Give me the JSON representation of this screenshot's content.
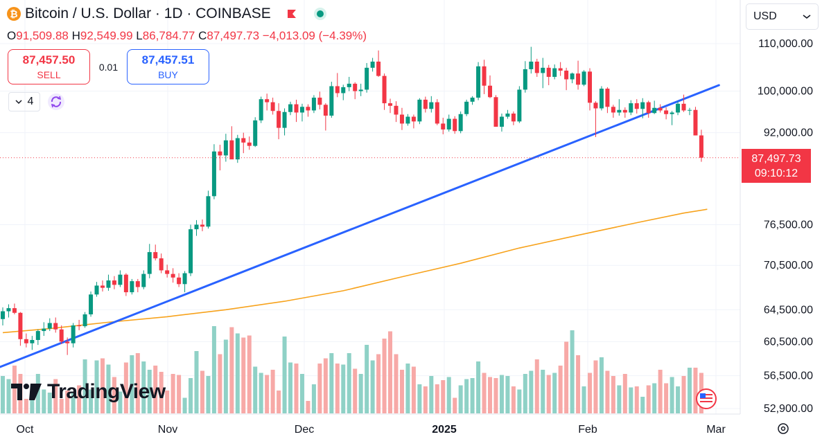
{
  "header": {
    "title": "Bitcoin / U.S. Dollar · 1D · COINBASE",
    "symbol_icon": "₿",
    "ohlc": {
      "o_label": "O",
      "o": "91,509.88",
      "h_label": "H",
      "h": "92,549.99",
      "l_label": "L",
      "l": "86,784.77",
      "c_label": "C",
      "c": "87,497.73",
      "change": "−4,013.09 (−4.39%)"
    }
  },
  "trade": {
    "sell_price": "87,457.50",
    "sell_label": "SELL",
    "spread": "0.01",
    "buy_price": "87,457.51",
    "buy_label": "BUY"
  },
  "indicators": {
    "count": "4"
  },
  "currency": {
    "label": "USD"
  },
  "last_price": {
    "price": "87,497.73",
    "countdown": "09:10:12"
  },
  "logo": {
    "text": "TradingView"
  },
  "colors": {
    "up": "#089981",
    "down": "#f23645",
    "trendline": "#2962ff",
    "ma": "#f7a21b",
    "vol_up": "#8fd1c6",
    "vol_down": "#f7a9a7",
    "grid": "#f0f3fa"
  },
  "chart_data": {
    "type": "candlestick",
    "symbol": "BTC/USD",
    "interval": "1D",
    "exchange": "COINBASE",
    "y_axis_scale": "log",
    "ylim": [
      52000,
      114000
    ],
    "x_ticks": [
      "Oct",
      "Nov",
      "Dec",
      "2025",
      "Feb",
      "Mar"
    ],
    "y_ticks": [
      "110,000.00",
      "100,000.00",
      "92,000.00",
      "76,500.00",
      "70,500.00",
      "64,500.00",
      "60,500.00",
      "56,500.00",
      "52,900.00"
    ],
    "candles_ohlc": [
      [
        63300,
        64800,
        62500,
        64300
      ],
      [
        64300,
        65200,
        63500,
        64700
      ],
      [
        64700,
        65300,
        63900,
        64100
      ],
      [
        64100,
        64200,
        60000,
        60800
      ],
      [
        60800,
        61500,
        59800,
        60300
      ],
      [
        60300,
        61200,
        59500,
        60700
      ],
      [
        60700,
        62000,
        60100,
        61800
      ],
      [
        61800,
        62900,
        61200,
        62100
      ],
      [
        62100,
        63400,
        61800,
        62800
      ],
      [
        62800,
        63500,
        61600,
        62000
      ],
      [
        62000,
        62500,
        60200,
        60500
      ],
      [
        60500,
        61000,
        58900,
        60300
      ],
      [
        60300,
        62800,
        59800,
        62500
      ],
      [
        62500,
        63200,
        61900,
        62400
      ],
      [
        62400,
        64200,
        62200,
        63900
      ],
      [
        63900,
        66900,
        63600,
        66500
      ],
      [
        66500,
        68200,
        66200,
        67700
      ],
      [
        67700,
        68400,
        66900,
        67400
      ],
      [
        67400,
        69200,
        67000,
        68400
      ],
      [
        68400,
        69000,
        67200,
        67800
      ],
      [
        67800,
        69800,
        67500,
        69200
      ],
      [
        69200,
        69400,
        66300,
        66800
      ],
      [
        66800,
        68600,
        66500,
        68300
      ],
      [
        68300,
        68600,
        66800,
        67500
      ],
      [
        67500,
        69800,
        67200,
        69300
      ],
      [
        69300,
        73600,
        68700,
        72400
      ],
      [
        72400,
        73500,
        71200,
        71500
      ],
      [
        71500,
        72200,
        69400,
        69800
      ],
      [
        69800,
        70600,
        68800,
        69300
      ],
      [
        69300,
        70100,
        68100,
        68800
      ],
      [
        68800,
        69400,
        67500,
        67900
      ],
      [
        67900,
        69700,
        66800,
        69400
      ],
      [
        69400,
        76500,
        69000,
        75800
      ],
      [
        75800,
        77200,
        74800,
        76500
      ],
      [
        76500,
        77300,
        75500,
        76200
      ],
      [
        76200,
        81900,
        75900,
        81000
      ],
      [
        81000,
        89900,
        80500,
        88600
      ],
      [
        88600,
        89800,
        85300,
        87900
      ],
      [
        87900,
        91800,
        86800,
        90600
      ],
      [
        90600,
        93200,
        87400,
        87200
      ],
      [
        87200,
        91600,
        86600,
        91000
      ],
      [
        91000,
        92000,
        88300,
        90200
      ],
      [
        90200,
        91300,
        88900,
        89600
      ],
      [
        89600,
        94900,
        89400,
        94300
      ],
      [
        94300,
        98900,
        93800,
        98400
      ],
      [
        98400,
        99500,
        96200,
        97800
      ],
      [
        97800,
        98700,
        95400,
        96100
      ],
      [
        96100,
        97600,
        90800,
        92900
      ],
      [
        92900,
        96600,
        91500,
        95900
      ],
      [
        95900,
        97900,
        95300,
        97400
      ],
      [
        97400,
        98300,
        94000,
        95800
      ],
      [
        95800,
        97500,
        94100,
        96900
      ],
      [
        96900,
        97400,
        95000,
        96200
      ],
      [
        96200,
        99200,
        95700,
        98700
      ],
      [
        98700,
        99900,
        96400,
        97300
      ],
      [
        97300,
        97600,
        92400,
        95200
      ],
      [
        95200,
        101900,
        94800,
        101000
      ],
      [
        101000,
        103700,
        98800,
        99600
      ],
      [
        99600,
        101300,
        98200,
        100800
      ],
      [
        100800,
        102900,
        100000,
        101500
      ],
      [
        101500,
        101800,
        98400,
        100000
      ],
      [
        100000,
        101500,
        99000,
        100300
      ],
      [
        100300,
        105800,
        99700,
        104800
      ],
      [
        104800,
        106900,
        104000,
        106100
      ],
      [
        106100,
        108500,
        102900,
        103100
      ],
      [
        103100,
        103600,
        96300,
        97600
      ],
      [
        97600,
        98500,
        95700,
        97100
      ],
      [
        97100,
        98000,
        94000,
        95400
      ],
      [
        95400,
        96700,
        92500,
        93700
      ],
      [
        93700,
        95500,
        93300,
        95000
      ],
      [
        95000,
        95400,
        92800,
        94100
      ],
      [
        94100,
        98600,
        93600,
        98300
      ],
      [
        98300,
        98900,
        95800,
        96500
      ],
      [
        96500,
        99000,
        95800,
        97800
      ],
      [
        97800,
        98400,
        93400,
        93700
      ],
      [
        93700,
        94800,
        91700,
        92600
      ],
      [
        92600,
        95400,
        92200,
        94600
      ],
      [
        94600,
        95100,
        91800,
        92300
      ],
      [
        92300,
        96000,
        91900,
        95500
      ],
      [
        95500,
        98300,
        95100,
        97900
      ],
      [
        97900,
        99000,
        97300,
        98700
      ],
      [
        98700,
        106000,
        98200,
        105100
      ],
      [
        105100,
        106500,
        99400,
        101100
      ],
      [
        101100,
        103200,
        98600,
        98800
      ],
      [
        98800,
        99200,
        93200,
        93100
      ],
      [
        93100,
        95600,
        92200,
        95000
      ],
      [
        95000,
        96300,
        94600,
        95600
      ],
      [
        95600,
        96000,
        93400,
        94100
      ],
      [
        94100,
        101000,
        93800,
        100300
      ],
      [
        100300,
        106200,
        99700,
        104500
      ],
      [
        104500,
        109300,
        103600,
        106100
      ],
      [
        106100,
        106700,
        102900,
        103700
      ],
      [
        103700,
        106900,
        100600,
        104800
      ],
      [
        104800,
        105400,
        101200,
        102900
      ],
      [
        102900,
        105500,
        102400,
        104700
      ],
      [
        104700,
        106000,
        103100,
        104200
      ],
      [
        104200,
        104800,
        100200,
        102400
      ],
      [
        102400,
        103800,
        101600,
        103600
      ],
      [
        103600,
        106300,
        100300,
        101300
      ],
      [
        101300,
        104300,
        101000,
        104000
      ],
      [
        104000,
        104700,
        96200,
        97700
      ],
      [
        97700,
        98000,
        91200,
        96600
      ],
      [
        96600,
        101000,
        96200,
        100500
      ],
      [
        100500,
        100800,
        95700,
        96900
      ],
      [
        96900,
        97300,
        94800,
        95800
      ],
      [
        95800,
        98400,
        95200,
        96300
      ],
      [
        96300,
        96800,
        94800,
        95800
      ],
      [
        95800,
        98200,
        95300,
        97600
      ],
      [
        97600,
        98400,
        95600,
        96500
      ],
      [
        96500,
        98600,
        94700,
        97800
      ],
      [
        97800,
        98100,
        94800,
        95700
      ],
      [
        95700,
        98100,
        95500,
        96700
      ],
      [
        96700,
        97400,
        95800,
        96200
      ],
      [
        96200,
        96800,
        94500,
        95500
      ],
      [
        95500,
        96100,
        93400,
        95800
      ],
      [
        95800,
        98000,
        95300,
        97500
      ],
      [
        97500,
        99300,
        95900,
        96200
      ],
      [
        96200,
        96700,
        95300,
        96300
      ],
      [
        96300,
        96900,
        91500,
        91500
      ],
      [
        91500,
        92550,
        86785,
        87498
      ]
    ],
    "volume_relative_to_max": [
      0.36,
      0.33,
      0.46,
      0.38,
      0.14,
      0.21,
      0.38,
      0.23,
      0.2,
      0.33,
      0.14,
      0.22,
      0.21,
      0.27,
      0.52,
      0.23,
      0.51,
      0.53,
      0.47,
      0.35,
      0.21,
      0.49,
      0.56,
      0.58,
      0.5,
      0.42,
      0.46,
      0.4,
      0.22,
      0.38,
      0.37,
      0.15,
      0.34,
      0.6,
      0.41,
      0.36,
      0.84,
      0.57,
      0.71,
      0.83,
      0.77,
      0.73,
      0.75,
      0.45,
      0.39,
      0.37,
      0.42,
      0.22,
      0.74,
      0.49,
      0.48,
      0.38,
      0.12,
      0.28,
      0.48,
      0.53,
      0.58,
      0.48,
      0.47,
      0.58,
      0.43,
      0.38,
      0.66,
      0.51,
      0.57,
      0.72,
      0.79,
      0.57,
      0.42,
      0.48,
      0.45,
      0.28,
      0.26,
      0.36,
      0.28,
      0.32,
      0.35,
      0.15,
      0.27,
      0.33,
      0.34,
      0.5,
      0.39,
      0.35,
      0.34,
      0.37,
      0.36,
      0.26,
      0.23,
      0.38,
      0.41,
      0.52,
      0.42,
      0.37,
      0.39,
      0.46,
      0.69,
      0.8,
      0.56,
      0.26,
      0.39,
      0.51,
      0.54,
      0.41,
      0.36,
      0.27,
      0.38,
      0.25,
      0.26,
      0.16,
      0.27,
      0.29,
      0.42,
      0.29,
      0.35,
      0.26,
      0.36,
      0.44,
      0.44,
      0.39
    ],
    "trendline_points": [
      [
        0,
        57500
      ],
      [
        122,
        101200
      ]
    ],
    "moving_average_points": [
      [
        0,
        61600
      ],
      [
        8,
        62100
      ],
      [
        18,
        62900
      ],
      [
        28,
        63600
      ],
      [
        38,
        64500
      ],
      [
        48,
        65600
      ],
      [
        58,
        67000
      ],
      [
        68,
        68900
      ],
      [
        78,
        70800
      ],
      [
        88,
        73000
      ],
      [
        98,
        74900
      ],
      [
        108,
        76800
      ],
      [
        116,
        78300
      ],
      [
        120,
        78900
      ]
    ],
    "last_close": 87497.73
  }
}
